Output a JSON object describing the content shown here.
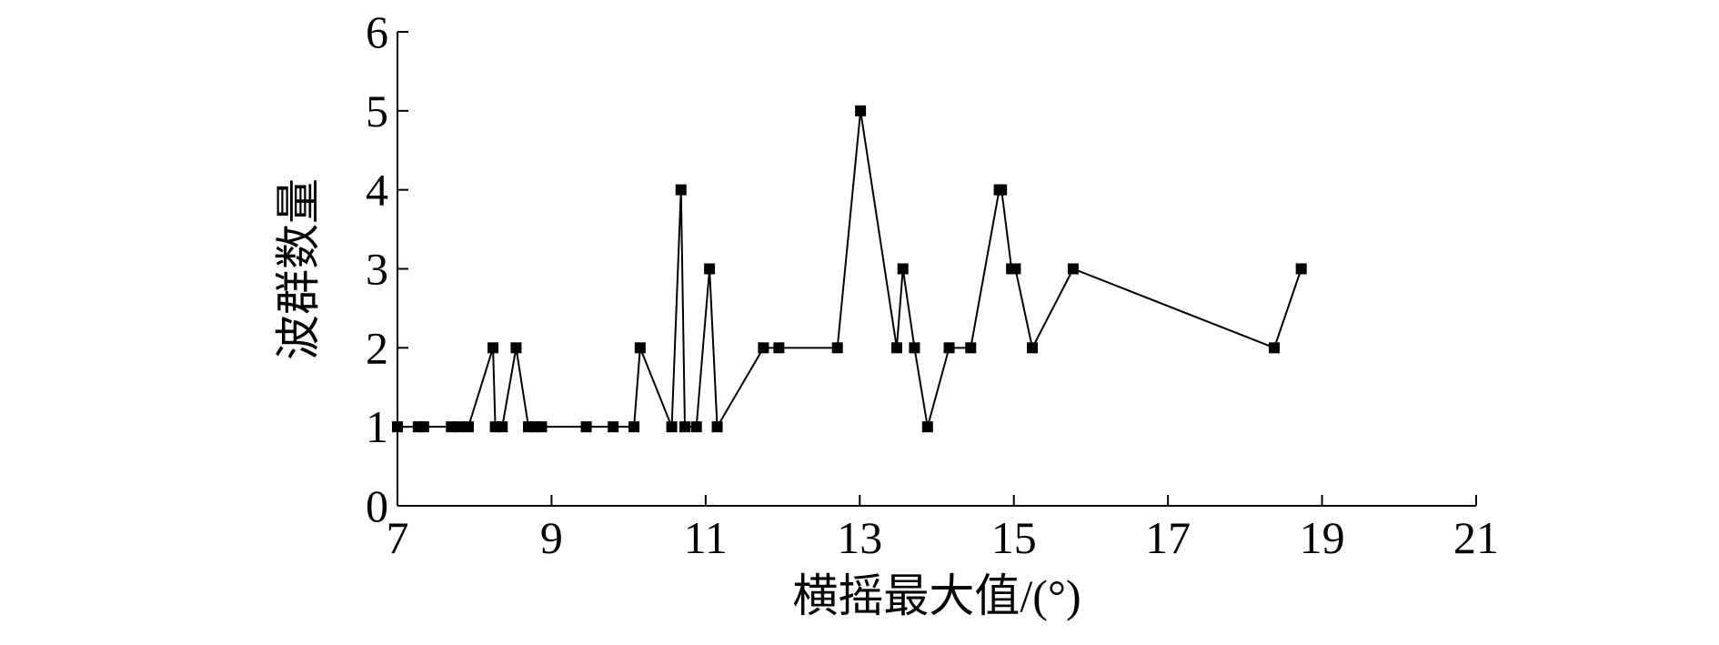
{
  "chart_data": {
    "type": "line",
    "x_label": "横摇最大值/(°)",
    "y_label": "波群数量",
    "x": [
      7.0,
      7.27,
      7.34,
      7.7,
      7.8,
      7.92,
      8.24,
      8.27,
      8.36,
      8.54,
      8.7,
      8.79,
      8.87,
      9.45,
      9.8,
      10.07,
      10.15,
      10.56,
      10.68,
      10.73,
      10.88,
      11.05,
      11.15,
      11.75,
      11.95,
      12.71,
      13.01,
      13.48,
      13.56,
      13.71,
      13.88,
      14.16,
      14.44,
      14.81,
      14.84,
      14.97,
      15.02,
      15.24,
      15.77,
      18.38,
      18.73
    ],
    "values": [
      1,
      1,
      1,
      1,
      1,
      1,
      2,
      1,
      1,
      2,
      1,
      1,
      1,
      1,
      1,
      1,
      2,
      1,
      4,
      1,
      1,
      3,
      1,
      2,
      2,
      2,
      5,
      2,
      3,
      2,
      1,
      2,
      2,
      4,
      4,
      3,
      3,
      2,
      3,
      2,
      3
    ],
    "color": "#000000",
    "xlim": [
      7,
      21
    ],
    "xticks": [
      7,
      9,
      11,
      13,
      15,
      17,
      19,
      21
    ],
    "ylim": [
      0,
      6
    ],
    "yticks": [
      0,
      1,
      2,
      3,
      4,
      5,
      6
    ]
  }
}
